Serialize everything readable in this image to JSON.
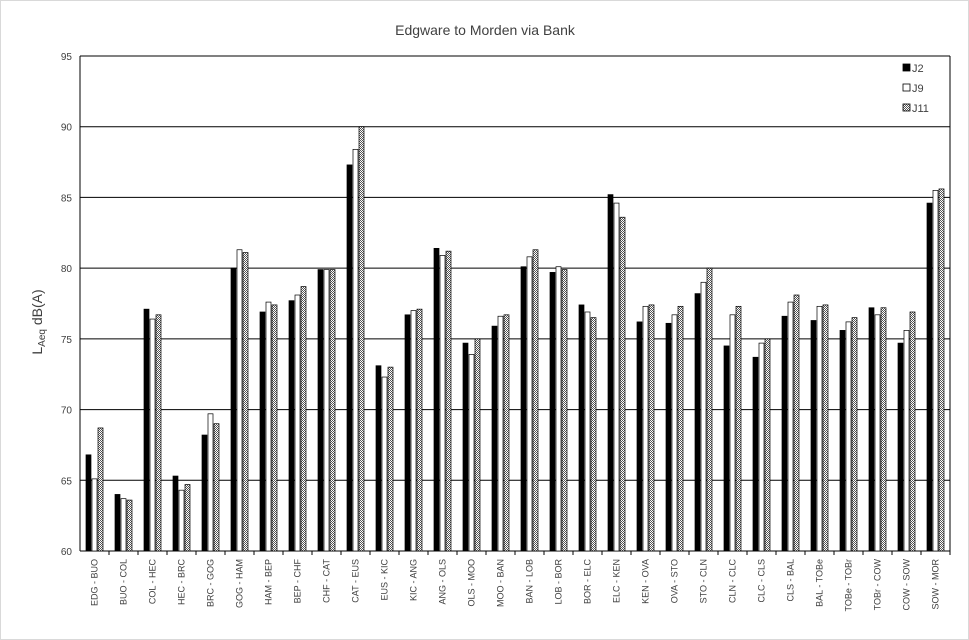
{
  "chart_data": {
    "type": "bar",
    "title": "Edgware to Morden via Bank",
    "ylabel_main": "L",
    "ylabel_sub": "Aeq",
    "ylabel_unit": " dB(A)",
    "ylim": [
      60,
      95
    ],
    "yticks": [
      60,
      65,
      70,
      75,
      80,
      85,
      90,
      95
    ],
    "grid": true,
    "legend_position": "top-right",
    "categories": [
      "EDG - BUO",
      "BUO - COL",
      "COL - HEC",
      "HEC - BRC",
      "BRC - GOG",
      "GOG - HAM",
      "HAM - BEP",
      "BEP - CHF",
      "CHF - CAT",
      "CAT - EUS",
      "EUS - KIC",
      "KIC - ANG",
      "ANG - OLS",
      "OLS - MOO",
      "MOO - BAN",
      "BAN - LOB",
      "LOB - BOR",
      "BOR - ELC",
      "ELC - KEN",
      "KEN - OVA",
      "OVA - STO",
      "STO - CLN",
      "CLN - CLC",
      "CLC - CLS",
      "CLS - BAL",
      "BAL - TOBe",
      "TOBe - TOBr",
      "TOBr - COW",
      "COW - SOW",
      "SOW - MOR"
    ],
    "series": [
      {
        "name": "J2",
        "style": "solid",
        "color": "#000000",
        "values": [
          66.8,
          64.0,
          77.1,
          65.3,
          68.2,
          80.0,
          76.9,
          77.7,
          79.9,
          87.3,
          73.1,
          76.7,
          81.4,
          74.7,
          75.9,
          80.1,
          79.7,
          77.4,
          85.2,
          76.2,
          76.1,
          78.2,
          74.5,
          73.7,
          76.6,
          76.3,
          75.6,
          77.2,
          74.7,
          84.6
        ]
      },
      {
        "name": "J9",
        "style": "hollow",
        "color": "#ffffff",
        "values": [
          65.1,
          63.7,
          76.4,
          64.3,
          69.7,
          81.3,
          77.6,
          78.1,
          79.9,
          88.4,
          72.3,
          77.0,
          80.9,
          73.9,
          76.6,
          80.8,
          80.1,
          76.9,
          84.6,
          77.3,
          76.7,
          79.0,
          76.7,
          74.7,
          77.6,
          77.3,
          76.2,
          76.7,
          75.6,
          85.5
        ]
      },
      {
        "name": "J11",
        "style": "hatched",
        "color": "#888888",
        "values": [
          68.7,
          63.6,
          76.7,
          64.7,
          69.0,
          81.1,
          77.4,
          78.7,
          79.9,
          90.0,
          73.0,
          77.1,
          81.2,
          75.0,
          76.7,
          81.3,
          79.9,
          76.5,
          83.6,
          77.4,
          77.3,
          80.0,
          77.3,
          75.0,
          78.1,
          77.4,
          76.5,
          77.2,
          76.9,
          85.6
        ]
      }
    ]
  }
}
